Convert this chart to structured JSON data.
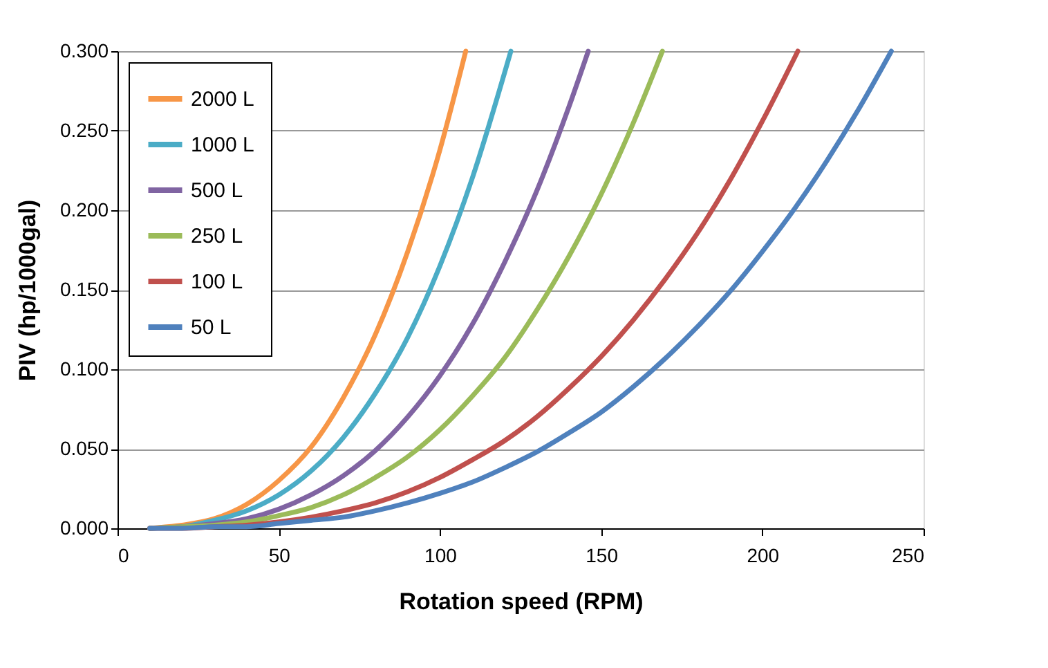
{
  "chart_data": {
    "type": "line",
    "xlabel": "Rotation speed (RPM)",
    "ylabel": "PIV (hp/1000gal)",
    "xlim": [
      0,
      250
    ],
    "xticks": [
      0,
      50,
      100,
      150,
      200,
      250
    ],
    "ylim": [
      0,
      0.3
    ],
    "yticks": [
      {
        "value": 0,
        "label": "0.000"
      },
      {
        "value": 0.05,
        "label": "0.050"
      },
      {
        "value": 0.1,
        "label": "0.100"
      },
      {
        "value": 0.15,
        "label": "0.150"
      },
      {
        "value": 0.2,
        "label": "0.200"
      },
      {
        "value": 0.25,
        "label": "0.250"
      },
      {
        "value": 0.3,
        "label": "0.300"
      }
    ],
    "grid": "y",
    "legend": "top left",
    "marker": "none",
    "line_style": "solid",
    "series": [
      {
        "name": "2000 L",
        "color": "#f79646",
        "x": [
          10,
          20,
          30,
          40,
          50,
          60,
          70,
          80,
          90,
          100,
          108
        ],
        "values": [
          0.0,
          0.002,
          0.006,
          0.015,
          0.03,
          0.051,
          0.082,
          0.122,
          0.174,
          0.238,
          0.3
        ]
      },
      {
        "name": "1000 L",
        "color": "#4bacc6",
        "x": [
          10,
          20,
          30,
          40,
          50,
          60,
          70,
          80,
          90,
          100,
          110,
          122
        ],
        "values": [
          0.0,
          0.001,
          0.005,
          0.011,
          0.021,
          0.036,
          0.057,
          0.085,
          0.12,
          0.165,
          0.22,
          0.3
        ]
      },
      {
        "name": "500 L",
        "color": "#8064a2",
        "x": [
          10,
          20,
          30,
          40,
          50,
          60,
          70,
          80,
          90,
          100,
          110,
          120,
          130,
          140,
          146
        ],
        "values": [
          0.0,
          0.001,
          0.003,
          0.006,
          0.012,
          0.021,
          0.033,
          0.049,
          0.07,
          0.096,
          0.128,
          0.167,
          0.212,
          0.265,
          0.3
        ]
      },
      {
        "name": "250 L",
        "color": "#9bbb59",
        "x": [
          10,
          20,
          30,
          40,
          50,
          60,
          70,
          80,
          90,
          100,
          110,
          120,
          130,
          140,
          150,
          160,
          169
        ],
        "values": [
          0.0,
          0.001,
          0.002,
          0.004,
          0.008,
          0.013,
          0.021,
          0.032,
          0.045,
          0.062,
          0.083,
          0.107,
          0.137,
          0.171,
          0.21,
          0.255,
          0.3
        ]
      },
      {
        "name": "100 L",
        "color": "#c0504d",
        "x": [
          10,
          20,
          30,
          40,
          50,
          60,
          70,
          80,
          90,
          100,
          110,
          120,
          130,
          140,
          150,
          160,
          170,
          180,
          190,
          200,
          211
        ],
        "values": [
          0.0,
          0.0,
          0.001,
          0.002,
          0.004,
          0.007,
          0.011,
          0.016,
          0.023,
          0.032,
          0.043,
          0.055,
          0.07,
          0.088,
          0.108,
          0.131,
          0.157,
          0.186,
          0.219,
          0.256,
          0.3
        ]
      },
      {
        "name": "50 L",
        "color": "#4f81bd",
        "x": [
          10,
          20,
          30,
          40,
          50,
          60,
          70,
          80,
          90,
          100,
          110,
          120,
          130,
          140,
          150,
          160,
          170,
          180,
          190,
          200,
          210,
          220,
          230,
          240
        ],
        "values": [
          0.0,
          0.0,
          0.001,
          0.001,
          0.003,
          0.005,
          0.007,
          0.011,
          0.016,
          0.022,
          0.029,
          0.038,
          0.048,
          0.06,
          0.073,
          0.089,
          0.107,
          0.127,
          0.149,
          0.174,
          0.201,
          0.231,
          0.264,
          0.3
        ]
      }
    ]
  }
}
